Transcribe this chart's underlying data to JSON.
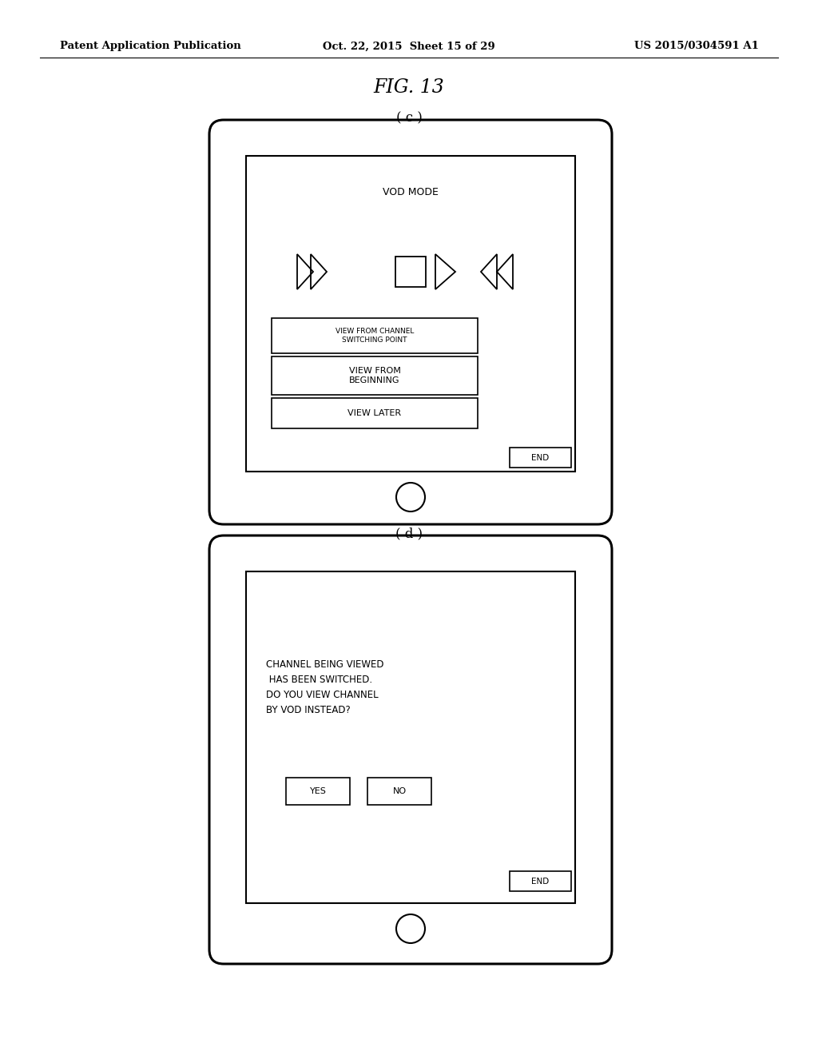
{
  "bg_color": "#ffffff",
  "header_left": "Patent Application Publication",
  "header_mid": "Oct. 22, 2015  Sheet 15 of 29",
  "header_right": "US 2015/0304591 A1",
  "fig_label": "FIG. 13",
  "sub_c": "( c )",
  "sub_d": "( d )"
}
